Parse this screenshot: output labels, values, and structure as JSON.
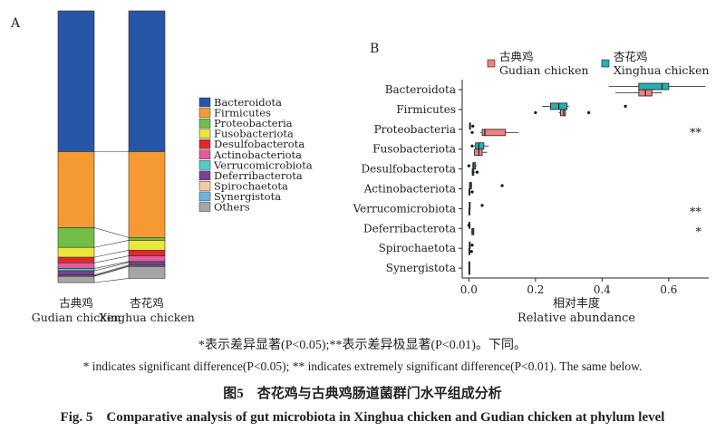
{
  "panel_a_label": "A",
  "panel_b_label": "B",
  "captions": {
    "note_cn": "*表示差异显著(P<0.05);**表示差异极显著(P<0.01)。下同。",
    "note_en": "* indicates significant difference(P<0.05); ** indicates extremely significant difference(P<0.01). The same below.",
    "title_cn": "图5　杏花鸡与古典鸡肠道菌群门水平组成分析",
    "title_en": "Fig. 5　Comparative analysis of gut microbiota in Xinghua chicken and Gudian chicken at phylum level"
  },
  "chart_data": [
    {
      "type": "bar",
      "subtype": "stacked-100",
      "panel": "A",
      "categories": [
        "古典鸡\nGudian chicken",
        "杏花鸡\nXinghua chicken"
      ],
      "category_labels_cn": [
        "古典鸡",
        "杏花鸡"
      ],
      "category_labels_en": [
        "Gudian chicken",
        "Xinghua chicken"
      ],
      "series": [
        {
          "name": "Bacteroidota",
          "color": "#2756a6",
          "values": [
            0.5,
            0.5
          ]
        },
        {
          "name": "Firmicutes",
          "color": "#f59a32",
          "values": [
            0.27,
            0.305
          ]
        },
        {
          "name": "Proteobacteria",
          "color": "#73be45",
          "values": [
            0.07,
            0.01
          ]
        },
        {
          "name": "Fusobacteriota",
          "color": "#e8e83a",
          "values": [
            0.035,
            0.035
          ]
        },
        {
          "name": "Desulfobacterota",
          "color": "#e3262a",
          "values": [
            0.02,
            0.02
          ]
        },
        {
          "name": "Actinobacteriota",
          "color": "#e45aa0",
          "values": [
            0.02,
            0.02
          ]
        },
        {
          "name": "Verrucomicrobiota",
          "color": "#4ccfc9",
          "values": [
            0.008,
            0.003
          ]
        },
        {
          "name": "Deferribacterota",
          "color": "#7a3f96",
          "values": [
            0.015,
            0.01
          ]
        },
        {
          "name": "Spirochaetota",
          "color": "#f6caa3",
          "values": [
            0.003,
            0.003
          ]
        },
        {
          "name": "Synergistota",
          "color": "#6bb6e1",
          "values": [
            0.002,
            0.002
          ]
        },
        {
          "name": "Others",
          "color": "#a6a6a6",
          "values": [
            0.022,
            0.042
          ]
        }
      ],
      "legend_position": "right"
    },
    {
      "type": "boxplot",
      "panel": "B",
      "orientation": "horizontal",
      "xlabel_cn": "相对丰度",
      "xlabel_en": "Relative abundance",
      "xlim": [
        -0.02,
        0.72
      ],
      "xticks": [
        "0.0",
        "0.2",
        "0.4",
        "0.6"
      ],
      "xtick_values": [
        0,
        0.2,
        0.4,
        0.6
      ],
      "categories": [
        "Bacteroidota",
        "Firmicutes",
        "Proteobacteria",
        "Fusobacteriota",
        "Desulfobacterota",
        "Actinobacteriota",
        "Verrucomicrobiota",
        "Deferribacterota",
        "Spirochaetota",
        "Synergistota"
      ],
      "legend_position": "top",
      "series": [
        {
          "name_cn": "古典鸡",
          "name_en": "Gudian chicken",
          "color": "#f07f7d",
          "boxes": [
            {
              "min": 0.44,
              "q1": 0.51,
              "median": 0.53,
              "q3": 0.55,
              "max": 0.58,
              "outliers": []
            },
            {
              "min": 0.27,
              "q1": 0.275,
              "median": 0.285,
              "q3": 0.29,
              "max": 0.29,
              "outliers": [
                0.2,
                0.36
              ]
            },
            {
              "min": 0.035,
              "q1": 0.04,
              "median": 0.048,
              "q3": 0.11,
              "max": 0.15,
              "outliers": [
                0.01
              ]
            },
            {
              "min": 0.015,
              "q1": 0.017,
              "median": 0.03,
              "q3": 0.04,
              "max": 0.055,
              "outliers": []
            },
            {
              "min": 0.008,
              "q1": 0.01,
              "median": 0.012,
              "q3": 0.015,
              "max": 0.02,
              "outliers": [
                0.025
              ]
            },
            {
              "min": 0.0,
              "q1": 0.0,
              "median": 0.001,
              "q3": 0.002,
              "max": 0.003,
              "outliers": [
                0.01
              ]
            },
            {
              "min": 0.0,
              "q1": 0.0,
              "median": 0.001,
              "q3": 0.002,
              "max": 0.002,
              "outliers": []
            },
            {
              "min": 0.008,
              "q1": 0.009,
              "median": 0.012,
              "q3": 0.015,
              "max": 0.016,
              "outliers": []
            },
            {
              "min": 0.0,
              "q1": 0.0,
              "median": 0.001,
              "q3": 0.002,
              "max": 0.003,
              "outliers": [
                0.008
              ]
            },
            {
              "min": 0.0,
              "q1": 0.0,
              "median": 0.0005,
              "q3": 0.001,
              "max": 0.001,
              "outliers": []
            }
          ]
        },
        {
          "name_cn": "杏花鸡",
          "name_en": "Xinghua chicken",
          "color": "#26b0ae",
          "boxes": [
            {
              "min": 0.42,
              "q1": 0.51,
              "median": 0.58,
              "q3": 0.6,
              "max": 0.71,
              "outliers": []
            },
            {
              "min": 0.22,
              "q1": 0.245,
              "median": 0.27,
              "q3": 0.295,
              "max": 0.3,
              "outliers": [
                0.47
              ]
            },
            {
              "min": 0.001,
              "q1": 0.002,
              "median": 0.003,
              "q3": 0.004,
              "max": 0.005,
              "outliers": [
                0.012
              ]
            },
            {
              "min": 0.015,
              "q1": 0.02,
              "median": 0.03,
              "q3": 0.045,
              "max": 0.06,
              "outliers": [
                0.01
              ]
            },
            {
              "min": 0.01,
              "q1": 0.012,
              "median": 0.015,
              "q3": 0.02,
              "max": 0.025,
              "outliers": [
                0.0
              ]
            },
            {
              "min": 0.0,
              "q1": 0.002,
              "median": 0.005,
              "q3": 0.008,
              "max": 0.01,
              "outliers": [
                0.1
              ]
            },
            {
              "min": 0.0,
              "q1": 0.001,
              "median": 0.002,
              "q3": 0.003,
              "max": 0.005,
              "outliers": [
                0.04
              ]
            },
            {
              "min": 0.0,
              "q1": 0.0,
              "median": 0.0005,
              "q3": 0.001,
              "max": 0.001,
              "outliers": [
                0.0
              ]
            },
            {
              "min": 0.0,
              "q1": 0.001,
              "median": 0.002,
              "q3": 0.003,
              "max": 0.004,
              "outliers": [
                0.01
              ]
            },
            {
              "min": 0.0,
              "q1": 0.0,
              "median": 0.0005,
              "q3": 0.001,
              "max": 0.001,
              "outliers": []
            }
          ]
        }
      ],
      "significance": [
        "",
        "",
        "**",
        "",
        "",
        "",
        "**",
        "*",
        "",
        ""
      ]
    }
  ]
}
